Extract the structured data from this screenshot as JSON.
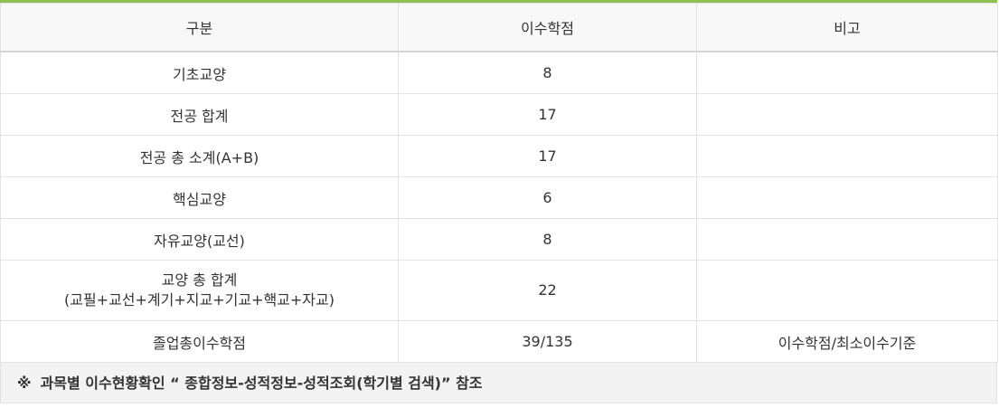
{
  "table": {
    "headers": [
      "구분",
      "이수학점",
      "비고"
    ],
    "rows": [
      {
        "category": "기초교양",
        "credits": "8",
        "note": ""
      },
      {
        "category": "전공 합계",
        "credits": "17",
        "note": ""
      },
      {
        "category": "전공 총 소계(A+B)",
        "credits": "17",
        "note": ""
      },
      {
        "category": "핵심교양",
        "credits": "6",
        "note": ""
      },
      {
        "category": "자유교양(교선)",
        "credits": "8",
        "note": ""
      },
      {
        "category_line1": "교양 총 합계",
        "category_line2": "(교필+교선+계기+지교+기교+핵교+자교)",
        "credits": "22",
        "note": ""
      },
      {
        "category": "졸업총이수학점",
        "credits": "39/135",
        "note": "이수학점/최소이수기준"
      }
    ]
  },
  "footnote": {
    "mark": "※",
    "text": "과목별 이수현황확인 “ 종합정보-성적정보-성적조회(학기별 검색)” 참조"
  },
  "colors": {
    "accent_bar": "#8fbf4f",
    "header_bg": "#f8f8f8",
    "note_bg": "#f3f3f3"
  }
}
